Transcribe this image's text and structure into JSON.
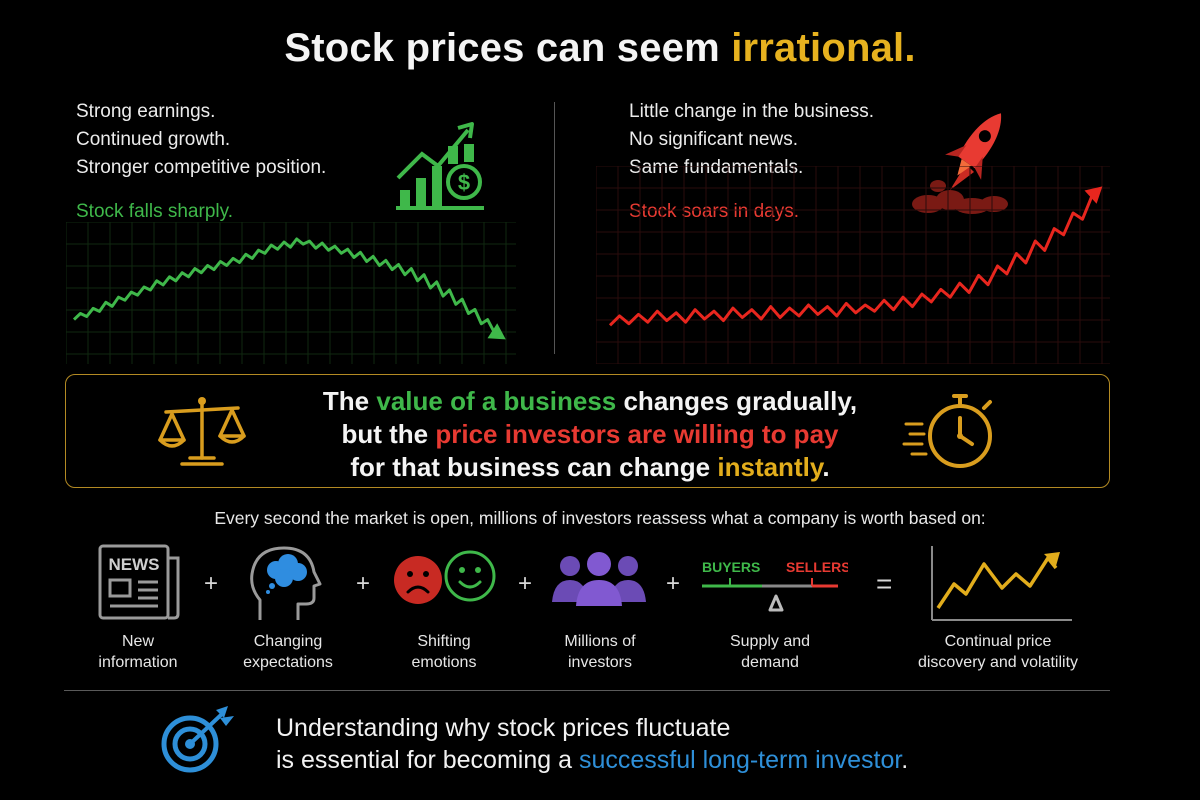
{
  "title": {
    "main": "Stock prices can seem ",
    "highlight": "irrational."
  },
  "left_panel": {
    "lines": [
      "Strong earnings.",
      "Continued growth.",
      "Stronger competitive position."
    ],
    "verdict": "Stock falls sharply.",
    "icon": "growth-chart-dollar-icon",
    "trend": [
      0.2,
      0.26,
      0.23,
      0.31,
      0.28,
      0.37,
      0.33,
      0.42,
      0.39,
      0.47,
      0.44,
      0.52,
      0.49,
      0.58,
      0.54,
      0.62,
      0.58,
      0.66,
      0.62,
      0.7,
      0.66,
      0.73,
      0.69,
      0.77,
      0.73,
      0.8,
      0.76,
      0.84,
      0.8,
      0.88,
      0.85,
      0.93,
      0.89,
      0.96,
      0.91,
      0.99,
      0.94,
      0.97,
      0.9,
      0.95,
      0.88,
      0.92,
      0.85,
      0.89,
      0.81,
      0.86,
      0.77,
      0.82,
      0.73,
      0.78,
      0.69,
      0.74,
      0.64,
      0.7,
      0.58,
      0.64,
      0.51,
      0.57,
      0.43,
      0.49,
      0.35,
      0.4,
      0.26,
      0.3,
      0.16,
      0.2,
      0.08
    ]
  },
  "right_panel": {
    "lines": [
      "Little change in the business.",
      "No significant news.",
      "Same fundamentals."
    ],
    "verdict": "Stock soars in days.",
    "icon": "rocket-icon",
    "trend": [
      0.12,
      0.18,
      0.13,
      0.19,
      0.14,
      0.21,
      0.15,
      0.2,
      0.14,
      0.22,
      0.16,
      0.21,
      0.15,
      0.23,
      0.17,
      0.22,
      0.16,
      0.24,
      0.17,
      0.23,
      0.18,
      0.25,
      0.19,
      0.24,
      0.18,
      0.26,
      0.2,
      0.25,
      0.21,
      0.28,
      0.22,
      0.3,
      0.24,
      0.32,
      0.27,
      0.35,
      0.3,
      0.39,
      0.33,
      0.44,
      0.38,
      0.5,
      0.45,
      0.58,
      0.52,
      0.66,
      0.6,
      0.74,
      0.7,
      0.84,
      0.8,
      0.95
    ]
  },
  "value_box": {
    "line1_a": "The ",
    "line1_b": "value of a business",
    "line1_c": " changes gradually,",
    "line2_a": "but the ",
    "line2_b": "price investors are willing to pay",
    "line3_a": "for that business can change ",
    "line3_b": "instantly",
    "line3_c": ".",
    "left_icon": "scales-icon",
    "right_icon": "stopwatch-icon"
  },
  "factors_intro": "Every second the market is open, millions of investors reassess what a company is worth based on:",
  "factors": [
    {
      "icon": "newspaper-icon",
      "line1": "New",
      "line2": "information",
      "news_label": "NEWS"
    },
    {
      "icon": "head-thought-icon",
      "line1": "Changing",
      "line2": "expectations"
    },
    {
      "icon": "emotion-faces-icon",
      "line1": "Shifting",
      "line2": "emotions"
    },
    {
      "icon": "people-group-icon",
      "line1": "Millions of",
      "line2": "investors"
    },
    {
      "icon": "balance-scale-icon",
      "line1": "Supply and",
      "line2": "demand",
      "buyers_label": "BUYERS",
      "sellers_label": "SELLERS"
    },
    {
      "icon": "price-line-chart-icon",
      "line1": "Continual price",
      "line2": "discovery and volatility"
    }
  ],
  "operators": [
    "+",
    "+",
    "+",
    "+",
    "+",
    "="
  ],
  "footer": {
    "line1": "Understanding why stock prices fluctuate",
    "line2_a": "is essential for becoming a ",
    "line2_b": "successful long-term investor",
    "line2_c": ".",
    "icon": "target-arrow-icon"
  },
  "colors": {
    "green": "#3fb84a",
    "red": "#e83a32",
    "gold": "#e2ad1c",
    "blue": "#2e8fd8"
  }
}
